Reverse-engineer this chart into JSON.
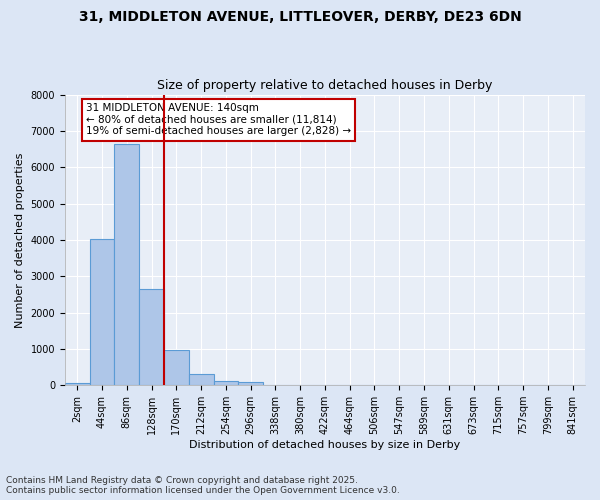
{
  "title_line1": "31, MIDDLETON AVENUE, LITTLEOVER, DERBY, DE23 6DN",
  "title_line2": "Size of property relative to detached houses in Derby",
  "xlabel": "Distribution of detached houses by size in Derby",
  "ylabel": "Number of detached properties",
  "categories": [
    "2sqm",
    "44sqm",
    "86sqm",
    "128sqm",
    "170sqm",
    "212sqm",
    "254sqm",
    "296sqm",
    "338sqm",
    "380sqm",
    "422sqm",
    "464sqm",
    "506sqm",
    "547sqm",
    "589sqm",
    "631sqm",
    "673sqm",
    "715sqm",
    "757sqm",
    "799sqm",
    "841sqm"
  ],
  "values": [
    60,
    4020,
    6650,
    2650,
    980,
    320,
    120,
    90,
    0,
    0,
    0,
    0,
    0,
    0,
    0,
    0,
    0,
    0,
    0,
    0,
    0
  ],
  "bar_color": "#aec6e8",
  "bar_edge_color": "#5b9bd5",
  "background_color": "#e8eef7",
  "fig_background_color": "#dce6f5",
  "grid_color": "#ffffff",
  "vline_x": 3.5,
  "vline_color": "#c00000",
  "annotation_title": "31 MIDDLETON AVENUE: 140sqm",
  "annotation_line1": "← 80% of detached houses are smaller (11,814)",
  "annotation_line2": "19% of semi-detached houses are larger (2,828) →",
  "annotation_box_color": "#c00000",
  "ylim": [
    0,
    8000
  ],
  "yticks": [
    0,
    1000,
    2000,
    3000,
    4000,
    5000,
    6000,
    7000,
    8000
  ],
  "footnote_line1": "Contains HM Land Registry data © Crown copyright and database right 2025.",
  "footnote_line2": "Contains public sector information licensed under the Open Government Licence v3.0.",
  "title_fontsize": 10,
  "subtitle_fontsize": 9,
  "axis_label_fontsize": 8,
  "tick_fontsize": 7,
  "annotation_fontsize": 7.5,
  "footnote_fontsize": 6.5
}
